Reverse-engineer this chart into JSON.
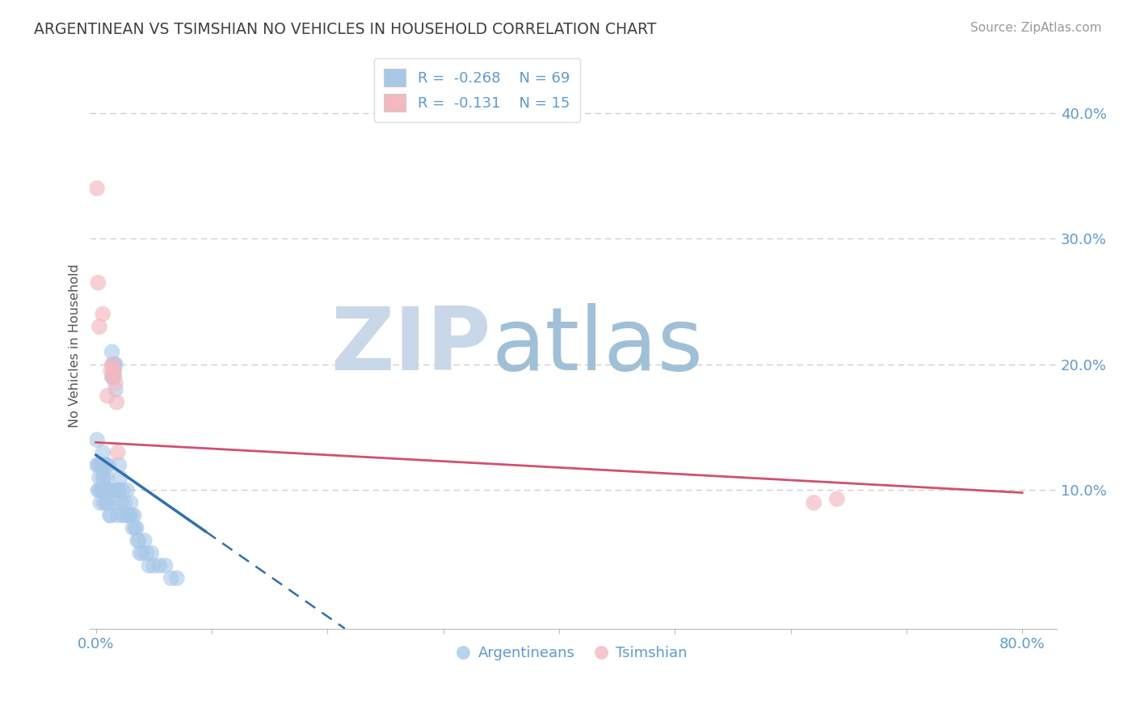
{
  "title": "ARGENTINEAN VS TSIMSHIAN NO VEHICLES IN HOUSEHOLD CORRELATION CHART",
  "source": "Source: ZipAtlas.com",
  "ylabel_label": "No Vehicles in Household",
  "xlim": [
    -0.005,
    0.83
  ],
  "ylim": [
    -0.01,
    0.44
  ],
  "legend_r1": "-0.268",
  "legend_n1": "69",
  "legend_r2": "-0.131",
  "legend_n2": "15",
  "blue_color": "#a8c8e8",
  "pink_color": "#f4b8c0",
  "blue_line_color": "#3070b0",
  "pink_line_color": "#d05070",
  "title_color": "#404040",
  "tick_color": "#5b9bd5",
  "grid_color": "#cccccc",
  "watermark_zip_color": "#c8d8e8",
  "watermark_atlas_color": "#a0c0d8",
  "blue_trend_x0": 0.0,
  "blue_trend_y0": 0.128,
  "blue_trend_x1_solid": 0.095,
  "blue_trend_x1_dash": 0.215,
  "blue_trend_y1_dash": -0.01,
  "pink_trend_x0": 0.0,
  "pink_trend_y0": 0.138,
  "pink_trend_x1": 0.8,
  "pink_trend_y1": 0.098,
  "argentinean_x": [
    0.001,
    0.001,
    0.002,
    0.002,
    0.003,
    0.003,
    0.004,
    0.004,
    0.005,
    0.005,
    0.006,
    0.006,
    0.006,
    0.007,
    0.007,
    0.008,
    0.008,
    0.009,
    0.009,
    0.01,
    0.01,
    0.011,
    0.011,
    0.012,
    0.012,
    0.013,
    0.013,
    0.014,
    0.014,
    0.015,
    0.015,
    0.016,
    0.016,
    0.017,
    0.017,
    0.018,
    0.018,
    0.019,
    0.019,
    0.02,
    0.02,
    0.021,
    0.022,
    0.023,
    0.024,
    0.025,
    0.026,
    0.027,
    0.028,
    0.029,
    0.03,
    0.031,
    0.032,
    0.033,
    0.034,
    0.035,
    0.036,
    0.037,
    0.038,
    0.04,
    0.042,
    0.044,
    0.046,
    0.048,
    0.05,
    0.055,
    0.06,
    0.065,
    0.07
  ],
  "argentinean_y": [
    0.14,
    0.12,
    0.12,
    0.1,
    0.11,
    0.1,
    0.12,
    0.09,
    0.12,
    0.1,
    0.11,
    0.13,
    0.1,
    0.09,
    0.11,
    0.12,
    0.1,
    0.09,
    0.12,
    0.1,
    0.11,
    0.09,
    0.12,
    0.1,
    0.08,
    0.1,
    0.08,
    0.19,
    0.21,
    0.2,
    0.19,
    0.2,
    0.19,
    0.18,
    0.2,
    0.1,
    0.09,
    0.1,
    0.08,
    0.12,
    0.1,
    0.11,
    0.09,
    0.1,
    0.08,
    0.09,
    0.08,
    0.1,
    0.08,
    0.08,
    0.09,
    0.08,
    0.07,
    0.08,
    0.07,
    0.07,
    0.06,
    0.06,
    0.05,
    0.05,
    0.06,
    0.05,
    0.04,
    0.05,
    0.04,
    0.04,
    0.04,
    0.03,
    0.03
  ],
  "tsimshian_x": [
    0.001,
    0.002,
    0.003,
    0.006,
    0.01,
    0.013,
    0.014,
    0.015,
    0.015,
    0.016,
    0.017,
    0.018,
    0.019,
    0.62,
    0.64
  ],
  "tsimshian_y": [
    0.34,
    0.265,
    0.23,
    0.24,
    0.175,
    0.195,
    0.2,
    0.195,
    0.19,
    0.195,
    0.185,
    0.17,
    0.13,
    0.09,
    0.093
  ]
}
